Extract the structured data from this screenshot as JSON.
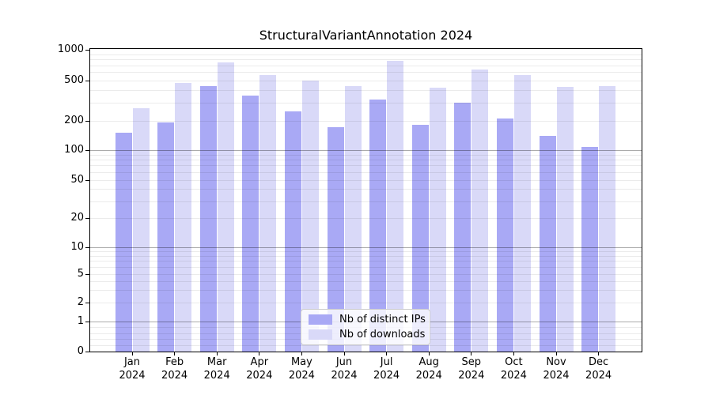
{
  "chart_data": {
    "type": "bar",
    "title": "StructuralVariantAnnotation 2024",
    "categories": [
      {
        "month": "Jan",
        "year": "2024"
      },
      {
        "month": "Feb",
        "year": "2024"
      },
      {
        "month": "Mar",
        "year": "2024"
      },
      {
        "month": "Apr",
        "year": "2024"
      },
      {
        "month": "May",
        "year": "2024"
      },
      {
        "month": "Jun",
        "year": "2024"
      },
      {
        "month": "Jul",
        "year": "2024"
      },
      {
        "month": "Aug",
        "year": "2024"
      },
      {
        "month": "Sep",
        "year": "2024"
      },
      {
        "month": "Oct",
        "year": "2024"
      },
      {
        "month": "Nov",
        "year": "2024"
      },
      {
        "month": "Dec",
        "year": "2024"
      }
    ],
    "series": [
      {
        "name": "Nb of distinct IPs",
        "color": "#a9a9f5",
        "values": [
          150,
          190,
          435,
          350,
          245,
          170,
          320,
          180,
          300,
          210,
          140,
          107
        ]
      },
      {
        "name": "Nb of downloads",
        "color": "#d9d9f8",
        "values": [
          265,
          470,
          745,
          560,
          500,
          440,
          780,
          420,
          640,
          560,
          430,
          440
        ]
      }
    ],
    "yticks": [
      0,
      1,
      2,
      5,
      10,
      20,
      50,
      100,
      200,
      500,
      1000
    ],
    "ylim": [
      0,
      1000
    ],
    "yscale": "symlog",
    "xlabel": "",
    "ylabel": "",
    "grid": true,
    "legend_position": "lower center",
    "axis_color": "#000000",
    "background_color": "#ffffff"
  }
}
